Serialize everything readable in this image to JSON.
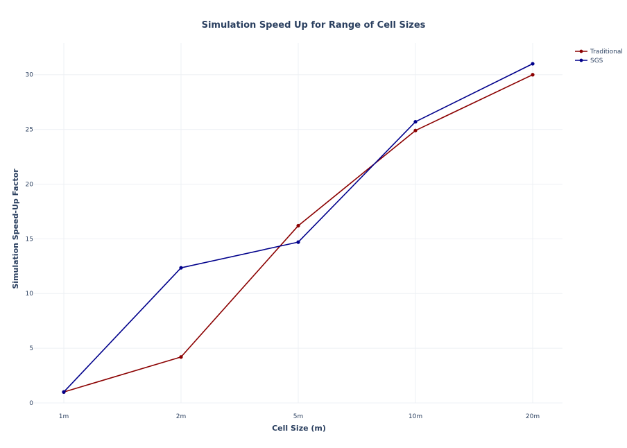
{
  "chart_data": {
    "type": "line",
    "title": "Simulation Speed Up for Range of Cell Sizes",
    "xlabel": "Cell Size (m)",
    "ylabel": "Simulation Speed-Up Factor",
    "categories": [
      "1m",
      "2m",
      "5m",
      "10m",
      "20m"
    ],
    "ylim": [
      0,
      32.9
    ],
    "yticks": [
      0,
      5,
      10,
      15,
      20,
      25,
      30
    ],
    "grid": true,
    "legend_position": "top-right",
    "series": [
      {
        "name": "Traditional",
        "color": "#8b0000",
        "values": [
          1.0,
          4.2,
          16.2,
          24.9,
          30.0
        ]
      },
      {
        "name": "SGS",
        "color": "#00008b",
        "values": [
          1.0,
          12.35,
          14.7,
          25.7,
          31.0
        ]
      }
    ]
  }
}
